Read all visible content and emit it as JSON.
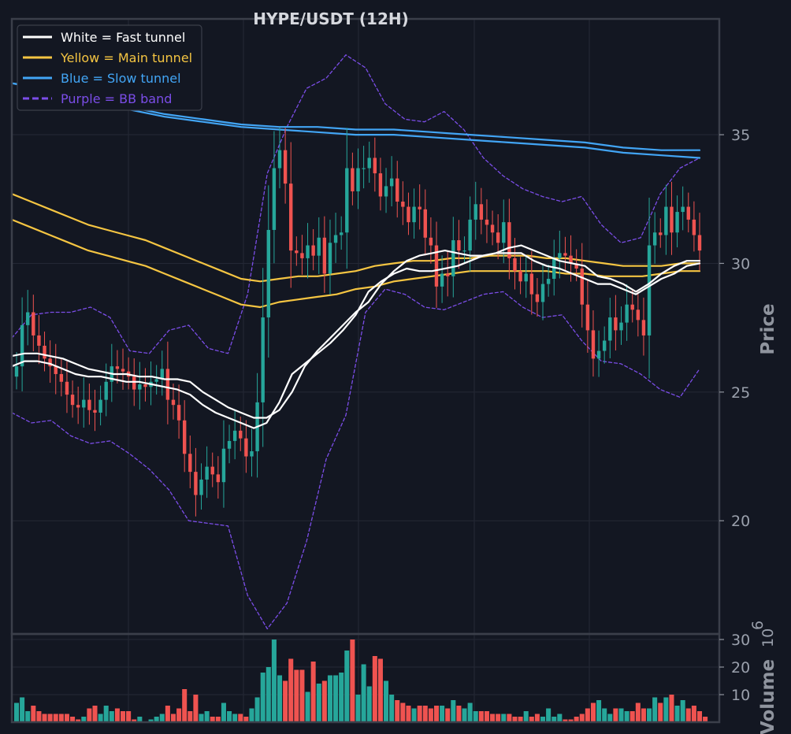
{
  "chart_data": {
    "type": "candlestick",
    "title": "HYPE/USDT (12H)",
    "price_axis": {
      "label": "Price",
      "ticks": [
        20,
        25,
        30,
        35
      ],
      "range": [
        15.6,
        39.5
      ]
    },
    "volume_axis": {
      "label": "Volume",
      "multiplier_label": "10",
      "multiplier_exp": "6",
      "ticks": [
        10,
        20,
        30
      ],
      "range": [
        0,
        32
      ]
    },
    "grid": true,
    "legend_position": "top-left",
    "legend": [
      {
        "label": "White = Fast tunnel",
        "color": "#ffffff",
        "style": "solid"
      },
      {
        "label": "Yellow = Main tunnel",
        "color": "#f5c542",
        "style": "solid"
      },
      {
        "label": "Blue = Slow tunnel",
        "color": "#42a5f5",
        "style": "solid"
      },
      {
        "label": "Purple = BB band",
        "color": "#7b4de8",
        "style": "dashed"
      }
    ],
    "colors": {
      "up": "#26a69a",
      "down": "#ef5350",
      "background": "#131722"
    },
    "closes": [
      26.0,
      27.6,
      28.1,
      27.2,
      26.8,
      26.3,
      26.0,
      25.7,
      25.4,
      24.9,
      24.5,
      24.4,
      24.7,
      24.3,
      24.2,
      24.7,
      25.4,
      26.0,
      25.9,
      25.8,
      25.6,
      25.1,
      25.3,
      25.2,
      25.4,
      25.5,
      25.9,
      24.7,
      24.5,
      23.9,
      22.6,
      21.9,
      21.0,
      21.6,
      22.1,
      21.8,
      21.5,
      22.8,
      23.1,
      23.5,
      23.2,
      22.5,
      22.7,
      24.6,
      27.9,
      31.3,
      33.7,
      34.4,
      33.1,
      30.5,
      30.4,
      30.2,
      30.7,
      30.3,
      31.0,
      29.6,
      30.8,
      31.1,
      31.2,
      33.7,
      32.8,
      33.7,
      33.7,
      34.1,
      33.5,
      32.6,
      33.0,
      33.3,
      32.4,
      32.2,
      31.6,
      32.2,
      32.1,
      31.0,
      30.7,
      29.1,
      29.6,
      29.5,
      30.9,
      30.5,
      30.5,
      31.7,
      32.3,
      31.7,
      31.5,
      31.2,
      30.8,
      31.6,
      30.2,
      29.7,
      29.3,
      29.6,
      28.8,
      28.5,
      29.2,
      29.4,
      30.2,
      30.4,
      30.3,
      30.0,
      29.8,
      28.4,
      27.4,
      26.3,
      26.6,
      27.0,
      27.9,
      27.4,
      27.7,
      28.4,
      28.2,
      27.8,
      27.2,
      30.7,
      31.2,
      31.1,
      32.2,
      31.2,
      32.0,
      32.2,
      31.7,
      31.1,
      30.5
    ],
    "volumes": [
      7,
      9,
      4,
      6,
      4,
      3,
      3,
      3,
      3,
      3,
      2,
      1,
      2,
      5,
      6,
      3,
      6,
      4,
      5,
      4,
      4,
      1,
      2,
      0,
      1,
      2,
      3,
      6,
      3,
      5,
      12,
      4,
      10,
      3,
      4,
      2,
      2,
      7,
      4,
      3,
      3,
      2,
      5,
      9,
      18,
      20,
      30,
      17,
      15,
      23,
      19,
      19,
      11,
      22,
      14,
      15,
      17,
      17,
      18,
      26,
      30,
      10,
      21,
      13,
      24,
      23,
      15,
      10,
      8,
      7,
      6,
      5,
      6,
      6,
      5,
      6,
      6,
      5,
      8,
      6,
      5,
      7,
      4,
      4,
      4,
      3,
      3,
      3,
      3,
      2,
      2,
      4,
      2,
      3,
      2,
      5,
      2,
      3,
      1,
      1,
      2,
      3,
      5,
      7,
      8,
      5,
      3,
      5,
      5,
      4,
      4,
      7,
      5,
      5,
      9,
      7,
      9,
      10,
      6,
      8,
      5,
      6,
      4,
      2
    ],
    "series": {
      "fast_upper": [
        26.4,
        26.5,
        26.5,
        26.4,
        26.3,
        26.1,
        25.9,
        25.8,
        25.7,
        25.7,
        25.6,
        25.6,
        25.5,
        25.5,
        25.4,
        25.0,
        24.7,
        24.4,
        24.2,
        24.0,
        24.0,
        24.3,
        25.0,
        26.0,
        26.6,
        27.1,
        27.6,
        28.1,
        28.5,
        29.2,
        29.7,
        30.1,
        30.3,
        30.4,
        30.5,
        30.4,
        30.3,
        30.3,
        30.4,
        30.6,
        30.7,
        30.5,
        30.3,
        30.1,
        30.0,
        29.9,
        29.5,
        29.4,
        29.2,
        28.9,
        29.2,
        29.6,
        29.9,
        30.1,
        30.1
      ],
      "fast_lower": [
        26.0,
        26.2,
        26.2,
        26.1,
        25.9,
        25.7,
        25.6,
        25.6,
        25.5,
        25.4,
        25.4,
        25.3,
        25.2,
        25.1,
        24.9,
        24.5,
        24.2,
        24.0,
        23.8,
        23.6,
        23.8,
        24.6,
        25.7,
        26.1,
        26.5,
        26.9,
        27.4,
        28.0,
        28.9,
        29.3,
        29.6,
        29.8,
        29.7,
        29.7,
        29.8,
        29.9,
        30.1,
        30.3,
        30.4,
        30.4,
        30.4,
        30.1,
        29.9,
        29.8,
        29.6,
        29.4,
        29.2,
        29.2,
        29.0,
        28.8,
        29.1,
        29.4,
        29.6,
        29.9,
        30.0
      ],
      "main_upper": [
        32.7,
        32.4,
        32.1,
        31.8,
        31.5,
        31.3,
        31.1,
        30.9,
        30.6,
        30.3,
        30.0,
        29.7,
        29.4,
        29.3,
        29.4,
        29.5,
        29.5,
        29.6,
        29.7,
        29.9,
        30.0,
        30.1,
        30.1,
        30.2,
        30.2,
        30.3,
        30.3,
        30.3,
        30.2,
        30.2,
        30.1,
        30.0,
        29.9,
        29.9,
        29.9,
        30.0,
        30.0
      ],
      "main_lower": [
        31.7,
        31.4,
        31.1,
        30.8,
        30.5,
        30.3,
        30.1,
        29.9,
        29.6,
        29.3,
        29.0,
        28.7,
        28.4,
        28.3,
        28.5,
        28.6,
        28.7,
        28.8,
        29.0,
        29.1,
        29.3,
        29.4,
        29.5,
        29.6,
        29.7,
        29.7,
        29.7,
        29.7,
        29.7,
        29.6,
        29.6,
        29.5,
        29.5,
        29.5,
        29.6,
        29.7,
        29.7
      ],
      "slow_upper": [
        37.0,
        36.8,
        36.5,
        36.1,
        35.8,
        35.6,
        35.4,
        35.3,
        35.3,
        35.2,
        35.2,
        35.1,
        35.0,
        34.9,
        34.8,
        34.7,
        34.5,
        34.4,
        34.4
      ],
      "slow_lower": [
        37.0,
        36.7,
        36.3,
        36.0,
        35.7,
        35.5,
        35.3,
        35.2,
        35.1,
        35.0,
        35.0,
        34.9,
        34.8,
        34.7,
        34.6,
        34.5,
        34.3,
        34.2,
        34.1
      ],
      "bb_upper": [
        27.1,
        28.0,
        28.1,
        28.1,
        28.3,
        27.9,
        26.6,
        26.5,
        27.4,
        27.6,
        26.7,
        26.5,
        28.8,
        33.5,
        35.3,
        36.8,
        37.2,
        38.1,
        37.6,
        36.2,
        35.6,
        35.5,
        35.9,
        35.2,
        34.1,
        33.4,
        32.9,
        32.6,
        32.4,
        32.6,
        31.5,
        30.8,
        31.0,
        32.7,
        33.7,
        34.1
      ],
      "bb_lower": [
        24.2,
        23.8,
        23.9,
        23.3,
        23.0,
        23.1,
        22.6,
        22.0,
        21.2,
        20.0,
        19.9,
        19.8,
        17.1,
        15.8,
        16.8,
        19.2,
        22.4,
        24.1,
        28.1,
        29.0,
        28.8,
        28.3,
        28.2,
        28.5,
        28.8,
        28.9,
        28.3,
        27.9,
        28.0,
        27.0,
        26.2,
        26.1,
        25.7,
        25.1,
        24.8,
        25.9
      ]
    }
  }
}
